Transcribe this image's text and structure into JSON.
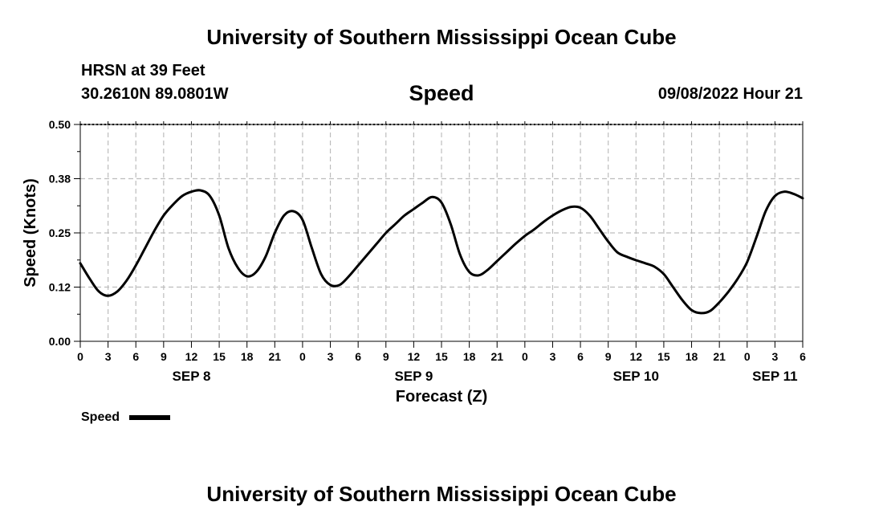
{
  "header": {
    "title": "University of Southern Mississippi Ocean Cube",
    "station": "HRSN at 39 Feet",
    "coords": "30.2610N  89.0801W",
    "datetime": "09/08/2022 Hour 21"
  },
  "footer": {
    "title": "University of Southern Mississippi Ocean Cube"
  },
  "chart_data": {
    "type": "line",
    "title": "Speed",
    "xlabel": "Forecast (Z)",
    "ylabel": "Speed (Knots)",
    "ylim": [
      0,
      0.5
    ],
    "yticks": [
      0,
      0.125,
      0.25,
      0.375,
      0.5
    ],
    "ytick_labels": [
      "0.00",
      "0.12",
      "0.25",
      "0.38",
      "0.50"
    ],
    "xlim": [
      0,
      78
    ],
    "xtick_labels": [
      "0",
      "3",
      "6",
      "9",
      "12",
      "15",
      "18",
      "21",
      "0",
      "3",
      "6",
      "9",
      "12",
      "15",
      "18",
      "21",
      "0",
      "3",
      "6",
      "9",
      "12",
      "15",
      "18",
      "21",
      "0",
      "3",
      "6"
    ],
    "date_labels": [
      {
        "label": "SEP 8",
        "x": 12
      },
      {
        "label": "SEP 9",
        "x": 36
      },
      {
        "label": "SEP 10",
        "x": 60
      },
      {
        "label": "SEP 11",
        "x": 75
      }
    ],
    "grid": true,
    "legend": "bottom-left",
    "series": [
      {
        "name": "Speed",
        "color": "#000000",
        "x": [
          0,
          1,
          2,
          3,
          4,
          5,
          6,
          7,
          8,
          9,
          10,
          11,
          12,
          13,
          14,
          15,
          16,
          17,
          18,
          19,
          20,
          21,
          22,
          23,
          24,
          25,
          26,
          27,
          28,
          29,
          30,
          31,
          32,
          33,
          34,
          35,
          36,
          37,
          38,
          39,
          40,
          41,
          42,
          43,
          44,
          45,
          46,
          47,
          48,
          49,
          50,
          51,
          52,
          53,
          54,
          55,
          56,
          57,
          58,
          59,
          60,
          61,
          62,
          63,
          64,
          65,
          66,
          67,
          68,
          69,
          70,
          71,
          72,
          73,
          74,
          75,
          76,
          77,
          78
        ],
        "values": [
          0.18,
          0.145,
          0.115,
          0.105,
          0.115,
          0.14,
          0.175,
          0.215,
          0.255,
          0.29,
          0.315,
          0.335,
          0.345,
          0.348,
          0.335,
          0.29,
          0.215,
          0.17,
          0.15,
          0.16,
          0.195,
          0.25,
          0.29,
          0.3,
          0.28,
          0.215,
          0.155,
          0.13,
          0.13,
          0.15,
          0.175,
          0.2,
          0.225,
          0.25,
          0.27,
          0.29,
          0.305,
          0.32,
          0.333,
          0.32,
          0.27,
          0.2,
          0.16,
          0.152,
          0.165,
          0.185,
          0.205,
          0.225,
          0.243,
          0.258,
          0.275,
          0.29,
          0.302,
          0.31,
          0.308,
          0.29,
          0.26,
          0.23,
          0.205,
          0.195,
          0.187,
          0.18,
          0.172,
          0.155,
          0.125,
          0.095,
          0.072,
          0.065,
          0.07,
          0.09,
          0.115,
          0.145,
          0.183,
          0.24,
          0.3,
          0.335,
          0.345,
          0.34,
          0.33
        ]
      }
    ]
  }
}
